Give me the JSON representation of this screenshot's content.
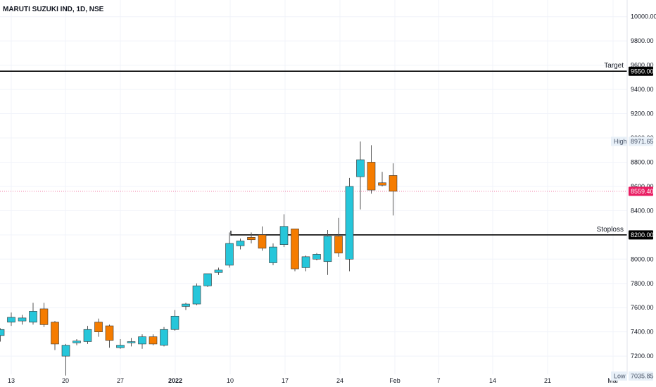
{
  "chart_title": "MARUTI SUZUKI IND, 1D, NSE",
  "colors": {
    "up": "#26c6da",
    "down": "#f57c00",
    "wick": "#555555",
    "grid": "#f0f3fa",
    "level_line": "#000000",
    "last_price": "#e91e63",
    "hl_tag_bg": "#e8f0f8"
  },
  "chart_data": {
    "type": "candlestick",
    "ylim": [
      7000,
      10100
    ],
    "y_ticks": [
      "7200.00",
      "7400.00",
      "7600.00",
      "7800.00",
      "8000.00",
      "8200.00",
      "8400.00",
      "8600.00",
      "8800.00",
      "9000.00",
      "9200.00",
      "9400.00",
      "9600.00",
      "9800.00",
      "10000.00"
    ],
    "x_ticks": [
      "13",
      "20",
      "27",
      "2022",
      "10",
      "17",
      "24",
      "Feb",
      "7",
      "14",
      "21",
      "Mar"
    ],
    "candles": [
      {
        "o": 7370,
        "h": 7430,
        "l": 7320,
        "c": 7420
      },
      {
        "o": 7480,
        "h": 7560,
        "l": 7450,
        "c": 7520
      },
      {
        "o": 7490,
        "h": 7540,
        "l": 7460,
        "c": 7515
      },
      {
        "o": 7480,
        "h": 7640,
        "l": 7460,
        "c": 7570
      },
      {
        "o": 7590,
        "h": 7640,
        "l": 7440,
        "c": 7460
      },
      {
        "o": 7480,
        "h": 7490,
        "l": 7250,
        "c": 7300
      },
      {
        "o": 7200,
        "h": 7300,
        "l": 7040,
        "c": 7290
      },
      {
        "o": 7310,
        "h": 7340,
        "l": 7290,
        "c": 7325
      },
      {
        "o": 7320,
        "h": 7450,
        "l": 7300,
        "c": 7420
      },
      {
        "o": 7480,
        "h": 7510,
        "l": 7360,
        "c": 7400
      },
      {
        "o": 7450,
        "h": 7460,
        "l": 7270,
        "c": 7330
      },
      {
        "o": 7270,
        "h": 7340,
        "l": 7260,
        "c": 7290
      },
      {
        "o": 7310,
        "h": 7350,
        "l": 7280,
        "c": 7320
      },
      {
        "o": 7300,
        "h": 7380,
        "l": 7260,
        "c": 7360
      },
      {
        "o": 7360,
        "h": 7380,
        "l": 7290,
        "c": 7300
      },
      {
        "o": 7290,
        "h": 7440,
        "l": 7280,
        "c": 7420
      },
      {
        "o": 7420,
        "h": 7580,
        "l": 7410,
        "c": 7530
      },
      {
        "o": 7610,
        "h": 7640,
        "l": 7580,
        "c": 7630
      },
      {
        "o": 7630,
        "h": 7800,
        "l": 7620,
        "c": 7780
      },
      {
        "o": 7780,
        "h": 7880,
        "l": 7770,
        "c": 7880
      },
      {
        "o": 7890,
        "h": 7930,
        "l": 7870,
        "c": 7910
      },
      {
        "o": 7950,
        "h": 8220,
        "l": 7930,
        "c": 8130
      },
      {
        "o": 8110,
        "h": 8170,
        "l": 8080,
        "c": 8150
      },
      {
        "o": 8180,
        "h": 8220,
        "l": 8130,
        "c": 8160
      },
      {
        "o": 8200,
        "h": 8270,
        "l": 8070,
        "c": 8090
      },
      {
        "o": 7970,
        "h": 8130,
        "l": 7950,
        "c": 8100
      },
      {
        "o": 8120,
        "h": 8370,
        "l": 8100,
        "c": 8270
      },
      {
        "o": 8250,
        "h": 8250,
        "l": 7900,
        "c": 7920
      },
      {
        "o": 7930,
        "h": 8030,
        "l": 7900,
        "c": 8020
      },
      {
        "o": 8000,
        "h": 8050,
        "l": 7990,
        "c": 8040
      },
      {
        "o": 7980,
        "h": 8240,
        "l": 7870,
        "c": 8190
      },
      {
        "o": 8190,
        "h": 8340,
        "l": 8020,
        "c": 8050
      },
      {
        "o": 8000,
        "h": 8670,
        "l": 7900,
        "c": 8600
      },
      {
        "o": 8680,
        "h": 8970,
        "l": 8410,
        "c": 8820
      },
      {
        "o": 8800,
        "h": 8940,
        "l": 8540,
        "c": 8570
      },
      {
        "o": 8630,
        "h": 8720,
        "l": 8600,
        "c": 8610
      },
      {
        "o": 8690,
        "h": 8790,
        "l": 8360,
        "c": 8560
      }
    ]
  },
  "levels": {
    "target": {
      "label": "Target",
      "value": 9550,
      "tag": "9550.00"
    },
    "stoploss": {
      "label": "Stoploss",
      "value": 8200,
      "tag": "8200.00"
    }
  },
  "last_price": {
    "value": 8559.4,
    "tag": "8559.40"
  },
  "high_marker": {
    "label": "High",
    "value": 8971.65,
    "tag": "8971.65"
  },
  "low_marker": {
    "label": "Low",
    "value": 7035.85,
    "tag": "7035.85"
  }
}
